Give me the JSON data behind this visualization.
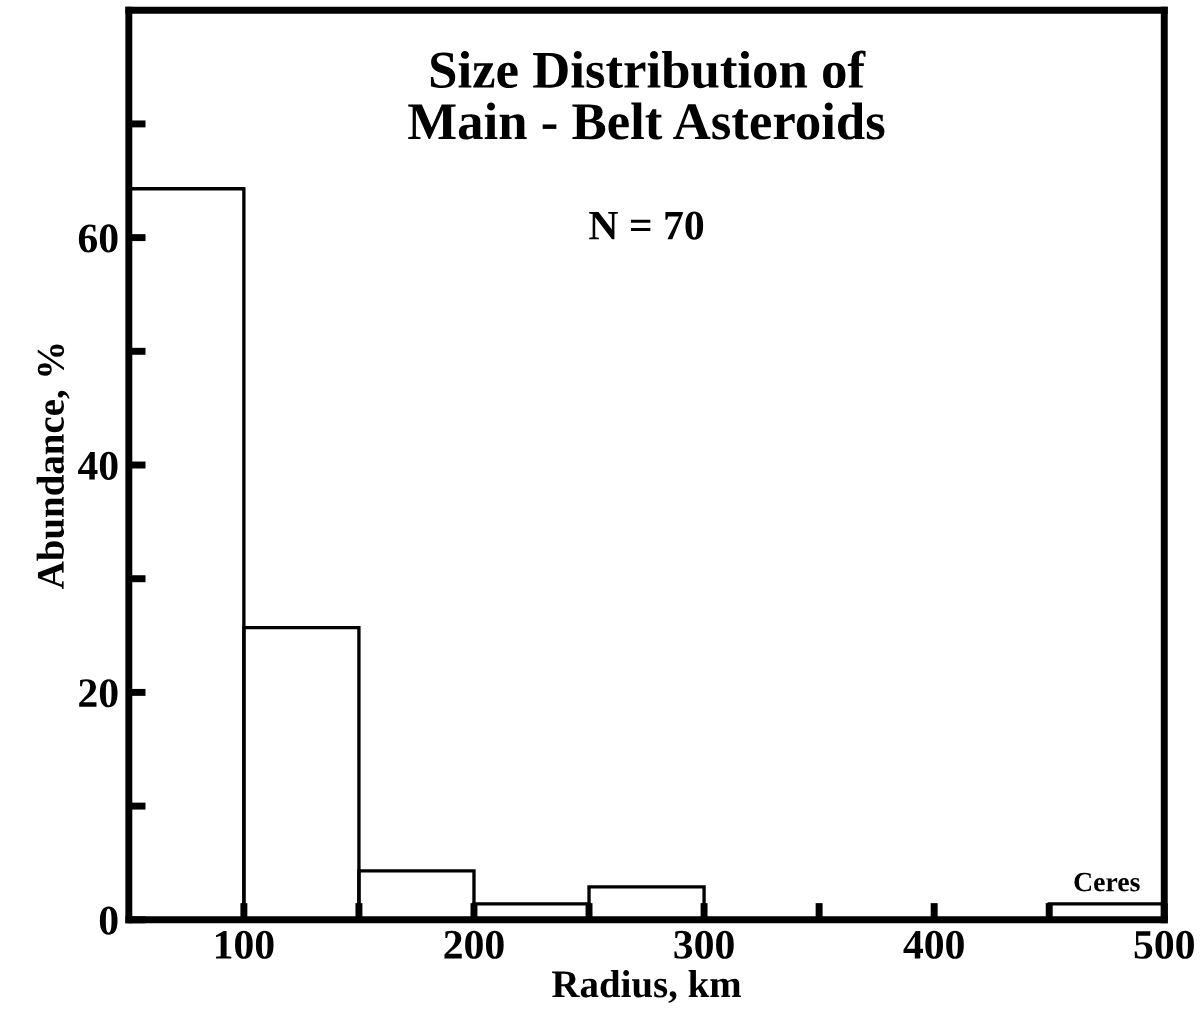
{
  "chart_data": {
    "type": "histogram",
    "title": "Size Distribution of\nMain - Belt Asteroids",
    "xlabel": "Radius, km",
    "ylabel": "Abundance, %",
    "bins": [
      50,
      100,
      150,
      200,
      250,
      300,
      350,
      400,
      450,
      500
    ],
    "values": [
      64.3,
      25.7,
      4.3,
      1.4,
      2.9,
      0,
      0,
      0,
      1.4
    ],
    "color": "#000000",
    "xlim": [
      50,
      500
    ],
    "ylim": [
      0,
      80
    ],
    "xticks": [
      100,
      {
        "value": 150,
        "label": null
      },
      200,
      {
        "value": 250,
        "label": null
      },
      300,
      {
        "value": 350,
        "label": null
      },
      400,
      {
        "value": 450,
        "label": null
      },
      500
    ],
    "yticks": [
      0,
      {
        "value": 10,
        "label": null
      },
      20,
      {
        "value": 30,
        "label": null
      },
      40,
      {
        "value": 50,
        "label": null
      },
      60,
      {
        "value": 70,
        "label": null
      }
    ],
    "annotations": [
      "N = 70",
      {
        "text": "Ceres",
        "x": 475,
        "y": 1.4
      }
    ],
    "grid": false,
    "legend": false
  }
}
